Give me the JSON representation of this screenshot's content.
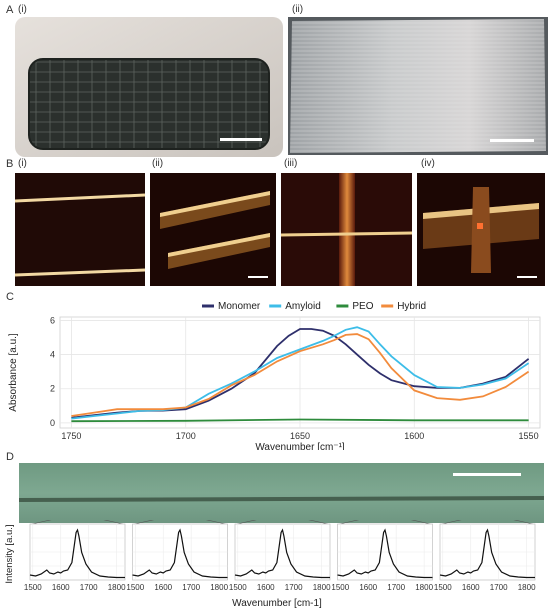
{
  "panel_A": {
    "label": "A",
    "sub_i": "(i)",
    "sub_ii": "(ii)"
  },
  "panel_B": {
    "label": "B",
    "sub_i": "(i)",
    "sub_ii": "(ii)",
    "sub_iii": "(iii)",
    "sub_iv": "(iv)"
  },
  "panel_C": {
    "label": "C"
  },
  "panel_D": {
    "label": "D"
  },
  "colors": {
    "monomer": "#2e2f6b",
    "amyloid": "#3dbde8",
    "peo": "#2e8b3c",
    "hybrid": "#f28b3c"
  },
  "chart_data": [
    {
      "type": "line",
      "xlabel": "Wavenumber [cm⁻¹]",
      "ylabel": "Absorbance [a.u.]",
      "xlim": [
        1755,
        1545
      ],
      "ylim": [
        -0.3,
        6.2
      ],
      "xticks": [
        1750,
        1700,
        1650,
        1600,
        1550
      ],
      "yticks": [
        0,
        2,
        4,
        6
      ],
      "grid": true,
      "legend_position": "top",
      "series": [
        {
          "name": "Monomer",
          "x": [
            1750,
            1740,
            1730,
            1720,
            1710,
            1700,
            1690,
            1680,
            1670,
            1660,
            1655,
            1650,
            1645,
            1640,
            1635,
            1630,
            1625,
            1620,
            1615,
            1610,
            1600,
            1590,
            1580,
            1570,
            1560,
            1550
          ],
          "y": [
            0.3,
            0.45,
            0.6,
            0.7,
            0.72,
            0.8,
            1.3,
            2.0,
            2.9,
            4.5,
            5.1,
            5.5,
            5.5,
            5.4,
            5.1,
            4.6,
            4.0,
            3.4,
            2.9,
            2.5,
            2.15,
            2.05,
            2.05,
            2.3,
            2.7,
            3.75
          ]
        },
        {
          "name": "Amyloid",
          "x": [
            1750,
            1740,
            1730,
            1720,
            1710,
            1700,
            1690,
            1680,
            1670,
            1660,
            1650,
            1640,
            1635,
            1630,
            1625,
            1620,
            1615,
            1610,
            1600,
            1590,
            1580,
            1570,
            1560,
            1550
          ],
          "y": [
            0.25,
            0.4,
            0.55,
            0.7,
            0.75,
            0.9,
            1.7,
            2.3,
            3.0,
            3.8,
            4.3,
            4.8,
            5.1,
            5.45,
            5.6,
            5.35,
            4.6,
            3.9,
            2.8,
            2.1,
            2.05,
            2.25,
            2.6,
            3.5
          ]
        },
        {
          "name": "PEO",
          "x": [
            1750,
            1700,
            1650,
            1600,
            1550
          ],
          "y": [
            0.1,
            0.12,
            0.2,
            0.15,
            0.15
          ]
        },
        {
          "name": "Hybrid",
          "x": [
            1750,
            1740,
            1730,
            1720,
            1710,
            1700,
            1690,
            1680,
            1670,
            1660,
            1650,
            1640,
            1635,
            1630,
            1625,
            1620,
            1615,
            1610,
            1600,
            1590,
            1580,
            1570,
            1560,
            1550
          ],
          "y": [
            0.4,
            0.6,
            0.8,
            0.8,
            0.8,
            0.9,
            1.4,
            2.2,
            2.8,
            3.6,
            4.2,
            4.6,
            4.85,
            5.15,
            5.2,
            4.9,
            4.1,
            3.2,
            1.9,
            1.45,
            1.35,
            1.55,
            2.1,
            3.0
          ]
        }
      ]
    },
    {
      "type": "line",
      "ylabel": "Intensity [a.u.]",
      "xlabel": "Wavenumber [cm-1]",
      "xlim": [
        1490,
        1830
      ],
      "xticks": [
        1500,
        1600,
        1700,
        1800
      ],
      "grid": true,
      "spectra_count": 5,
      "series": [
        {
          "x": [
            1490,
            1510,
            1530,
            1550,
            1560,
            1575,
            1590,
            1600,
            1610,
            1625,
            1640,
            1650,
            1655,
            1660,
            1665,
            1675,
            1690,
            1710,
            1740,
            1770,
            1800,
            1830
          ],
          "y": [
            0.1,
            0.08,
            0.12,
            0.2,
            0.14,
            0.12,
            0.16,
            0.14,
            0.18,
            0.2,
            0.35,
            0.75,
            0.95,
            1.0,
            0.88,
            0.55,
            0.32,
            0.16,
            0.08,
            0.06,
            0.05,
            0.05
          ]
        }
      ]
    }
  ]
}
